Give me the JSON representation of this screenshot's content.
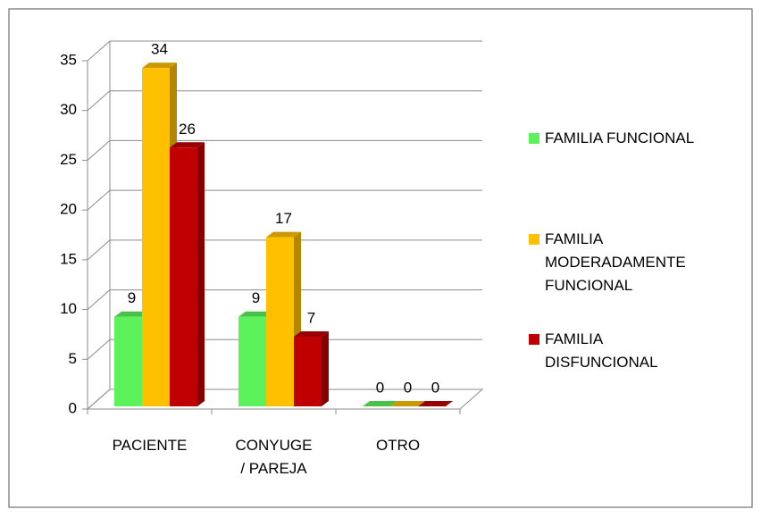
{
  "chart_data": {
    "type": "bar3d",
    "categories": [
      "PACIENTE",
      "CONYUGE\n/ PAREJA",
      "OTRO"
    ],
    "series": [
      {
        "name": "FAMILIA FUNCIONAL",
        "color": "#5cf25c",
        "values": [
          9,
          9,
          0
        ]
      },
      {
        "name": "FAMILIA\nMODERADAMENTE\nFUNCIONAL",
        "color": "#ffc000",
        "values": [
          34,
          17,
          0
        ]
      },
      {
        "name": "FAMILIA\nDISFUNCIONAL",
        "color": "#c00000",
        "values": [
          26,
          7,
          0
        ]
      }
    ],
    "ylim": [
      0,
      35
    ],
    "yticks": [
      0,
      5,
      10,
      15,
      20,
      25,
      30,
      35
    ],
    "grid": true,
    "legend": "right"
  }
}
